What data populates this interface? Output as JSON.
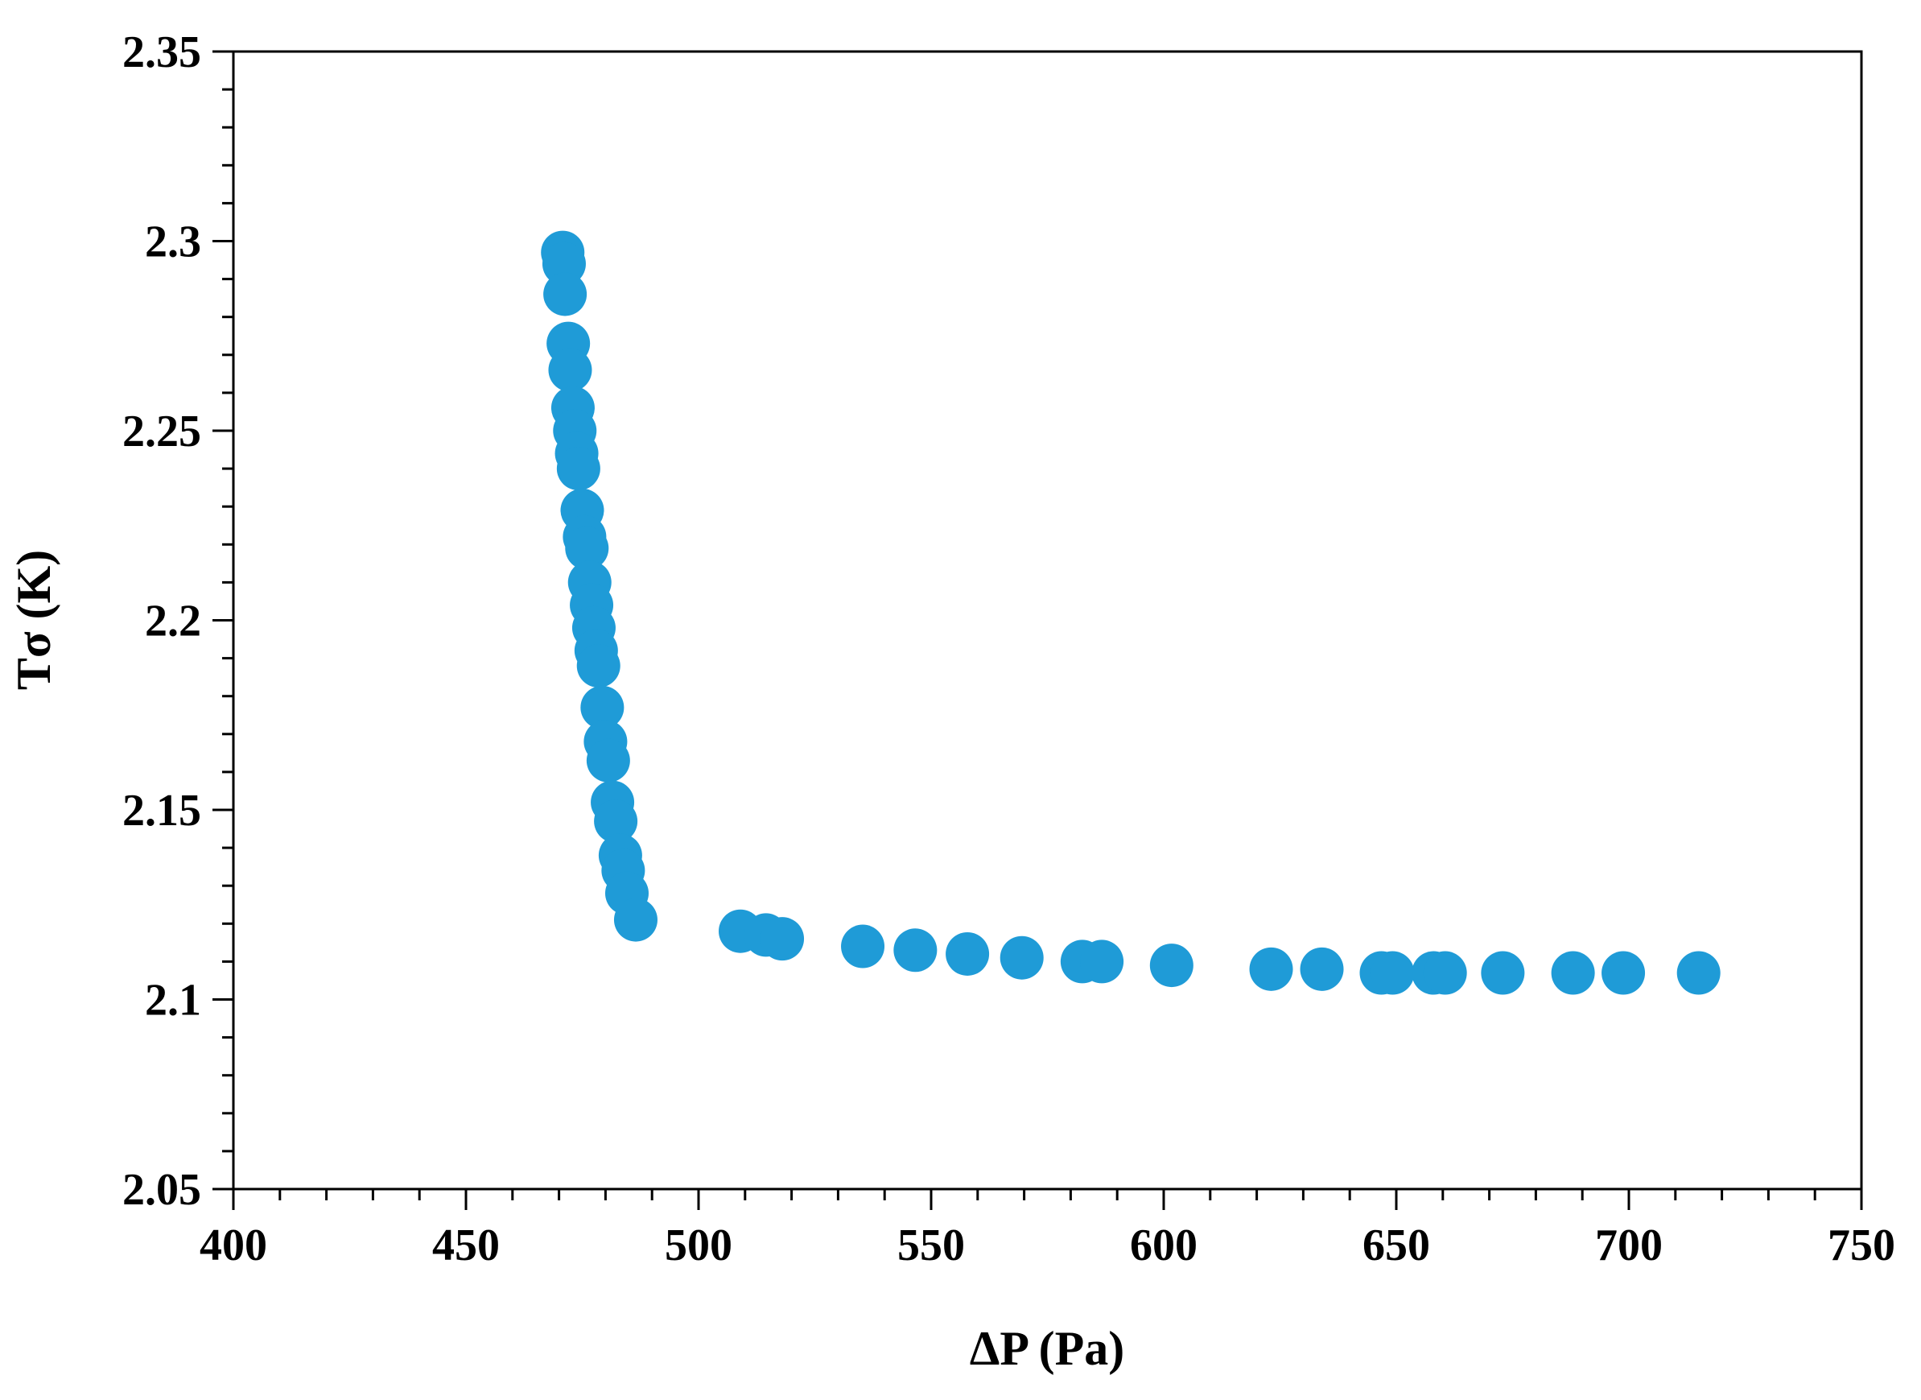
{
  "chart_data": {
    "type": "scatter",
    "xlabel": "ΔP (Pa)",
    "ylabel": "Tσ (K)",
    "xlim": [
      400,
      750
    ],
    "ylim": [
      2.05,
      2.35
    ],
    "x_ticks": [
      400,
      450,
      500,
      550,
      600,
      650,
      700,
      750
    ],
    "y_ticks": [
      2.05,
      2.1,
      2.15,
      2.2,
      2.25,
      2.3,
      2.35
    ],
    "x_tick_labels": [
      "400",
      "450",
      "500",
      "550",
      "600",
      "650",
      "700",
      "750"
    ],
    "y_tick_labels": [
      "2.05",
      "2.1",
      "2.15",
      "2.2",
      "2.25",
      "2.3",
      "2.35"
    ],
    "x_minor_step": 10,
    "y_minor_step": 0.01,
    "grid": false,
    "legend": "none",
    "marker_color": "#1f9bd7",
    "series": [
      {
        "points": [
          [
            470.8,
            2.297
          ],
          [
            471.1,
            2.294
          ],
          [
            471.3,
            2.286
          ],
          [
            472.0,
            2.273
          ],
          [
            472.4,
            2.266
          ],
          [
            473.0,
            2.256
          ],
          [
            473.4,
            2.25
          ],
          [
            473.8,
            2.244
          ],
          [
            474.2,
            2.24
          ],
          [
            475.0,
            2.229
          ],
          [
            475.5,
            2.222
          ],
          [
            476.0,
            2.219
          ],
          [
            476.6,
            2.21
          ],
          [
            477.0,
            2.204
          ],
          [
            477.5,
            2.198
          ],
          [
            478.0,
            2.192
          ],
          [
            478.5,
            2.188
          ],
          [
            479.3,
            2.177
          ],
          [
            480.0,
            2.168
          ],
          [
            480.6,
            2.163
          ],
          [
            481.5,
            2.152
          ],
          [
            482.2,
            2.147
          ],
          [
            483.2,
            2.138
          ],
          [
            483.8,
            2.134
          ],
          [
            484.6,
            2.128
          ],
          [
            486.5,
            2.121
          ],
          [
            509.0,
            2.118
          ],
          [
            514.5,
            2.117
          ],
          [
            518.0,
            2.116
          ],
          [
            535.3,
            2.114
          ],
          [
            546.6,
            2.113
          ],
          [
            557.8,
            2.112
          ],
          [
            569.5,
            2.111
          ],
          [
            582.5,
            2.11
          ],
          [
            586.7,
            2.11
          ],
          [
            601.7,
            2.109
          ],
          [
            623.1,
            2.108
          ],
          [
            634.0,
            2.108
          ],
          [
            646.8,
            2.107
          ],
          [
            649.2,
            2.107
          ],
          [
            658.0,
            2.107
          ],
          [
            660.5,
            2.107
          ],
          [
            672.9,
            2.107
          ],
          [
            688.0,
            2.107
          ],
          [
            698.8,
            2.107
          ],
          [
            715.0,
            2.107
          ]
        ]
      }
    ]
  }
}
